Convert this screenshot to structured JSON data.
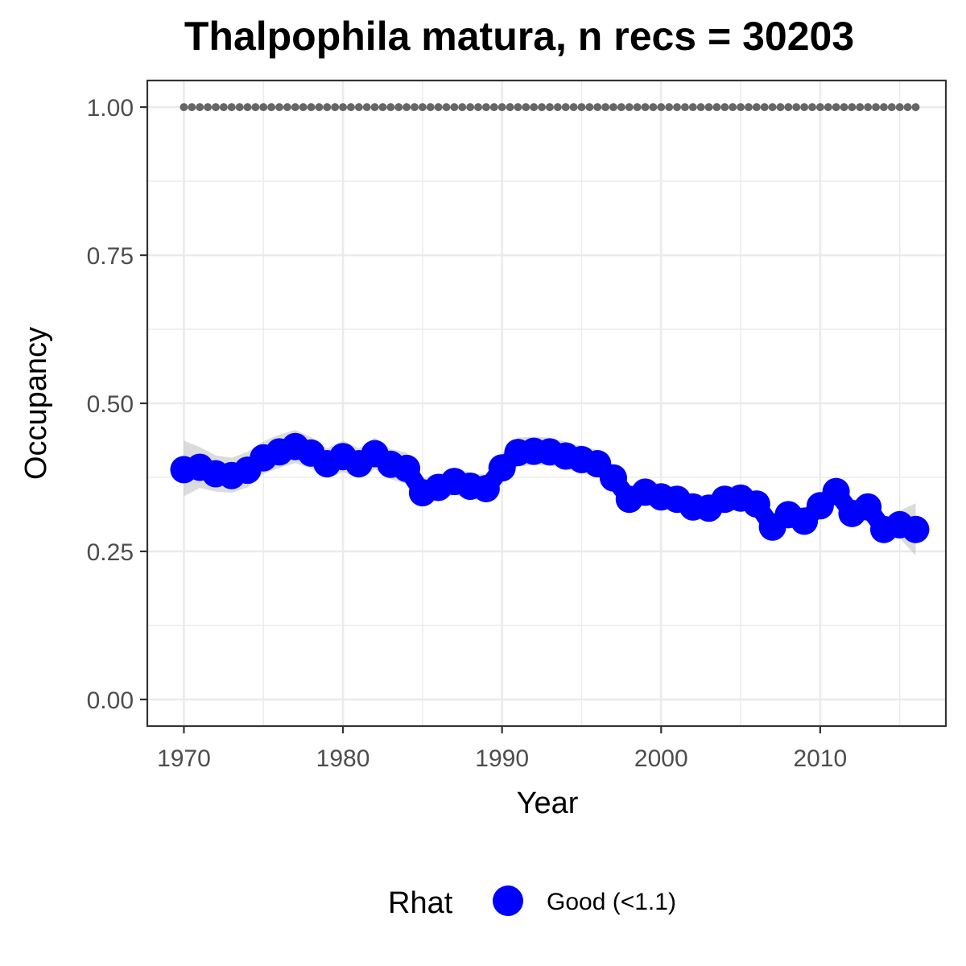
{
  "chart_data": {
    "type": "line",
    "title": "Thalpophila matura, n recs = 30203",
    "xlabel": "Year",
    "ylabel": "Occupancy",
    "xlim": [
      1967.7,
      2017.9
    ],
    "ylim": [
      -0.045,
      1.045
    ],
    "x_ticks": [
      1970,
      1980,
      1990,
      2000,
      2010
    ],
    "x_tick_labels": [
      "1970",
      "1980",
      "1990",
      "2000",
      "2010"
    ],
    "y_ticks": [
      0,
      0.25,
      0.5,
      0.75,
      1.0
    ],
    "y_tick_labels": [
      "0.00",
      "0.25",
      "0.50",
      "0.75",
      "1.00"
    ],
    "grid": true,
    "legend": {
      "position": "bottom",
      "title": "Rhat",
      "entries": [
        {
          "label": "Good (<1.1)",
          "color": "#0000ff"
        }
      ]
    },
    "colors": {
      "series": "#0000ff",
      "ribbon": "#bebebe",
      "reference": "#666666",
      "grid": "#ebebeb",
      "panel_border": "#333333"
    },
    "series": [
      {
        "name": "Good (<1.1)",
        "x": [
          1970,
          1971,
          1972,
          1973,
          1974,
          1975,
          1976,
          1977,
          1978,
          1979,
          1980,
          1981,
          1982,
          1983,
          1984,
          1985,
          1986,
          1987,
          1988,
          1989,
          1990,
          1991,
          1992,
          1993,
          1994,
          1995,
          1996,
          1997,
          1998,
          1999,
          2000,
          2001,
          2002,
          2003,
          2004,
          2005,
          2006,
          2007,
          2008,
          2009,
          2010,
          2011,
          2012,
          2013,
          2014,
          2015,
          2016
        ],
        "values": [
          0.388,
          0.392,
          0.381,
          0.378,
          0.387,
          0.408,
          0.418,
          0.427,
          0.416,
          0.398,
          0.41,
          0.398,
          0.415,
          0.397,
          0.39,
          0.349,
          0.358,
          0.368,
          0.36,
          0.356,
          0.391,
          0.417,
          0.419,
          0.418,
          0.411,
          0.405,
          0.398,
          0.374,
          0.338,
          0.35,
          0.342,
          0.338,
          0.325,
          0.323,
          0.338,
          0.34,
          0.33,
          0.291,
          0.312,
          0.301,
          0.327,
          0.351,
          0.314,
          0.325,
          0.287,
          0.295,
          0.287
        ],
        "lower": [
          0.343,
          0.357,
          0.351,
          0.349,
          0.358,
          0.381,
          0.391,
          0.399,
          0.39,
          0.373,
          0.384,
          0.373,
          0.389,
          0.372,
          0.364,
          0.327,
          0.337,
          0.346,
          0.339,
          0.334,
          0.367,
          0.393,
          0.396,
          0.395,
          0.389,
          0.383,
          0.376,
          0.353,
          0.318,
          0.329,
          0.322,
          0.318,
          0.305,
          0.303,
          0.318,
          0.32,
          0.31,
          0.272,
          0.292,
          0.281,
          0.306,
          0.33,
          0.294,
          0.304,
          0.266,
          0.272,
          0.243
        ],
        "upper": [
          0.437,
          0.426,
          0.412,
          0.408,
          0.418,
          0.436,
          0.447,
          0.455,
          0.443,
          0.424,
          0.437,
          0.424,
          0.442,
          0.423,
          0.417,
          0.372,
          0.38,
          0.391,
          0.383,
          0.379,
          0.416,
          0.442,
          0.444,
          0.442,
          0.435,
          0.428,
          0.421,
          0.396,
          0.359,
          0.372,
          0.363,
          0.359,
          0.346,
          0.344,
          0.359,
          0.361,
          0.351,
          0.311,
          0.332,
          0.322,
          0.348,
          0.373,
          0.335,
          0.347,
          0.308,
          0.319,
          0.331
        ]
      },
      {
        "name": "",
        "x": [
          1970,
          1971,
          1972,
          1973,
          1974,
          1975,
          1976,
          1977,
          1978,
          1979,
          1980,
          1981,
          1982,
          1983,
          1984,
          1985,
          1986,
          1987,
          1988,
          1989,
          1990,
          1991,
          1992,
          1993,
          1994,
          1995,
          1996,
          1997,
          1998,
          1999,
          2000,
          2001,
          2002,
          2003,
          2004,
          2005,
          2006,
          2007,
          2008,
          2009,
          2010,
          2011,
          2012,
          2013,
          2014,
          2015,
          2016
        ],
        "values": [
          1,
          1,
          1,
          1,
          1,
          1,
          1,
          1,
          1,
          1,
          1,
          1,
          1,
          1,
          1,
          1,
          1,
          1,
          1,
          1,
          1,
          1,
          1,
          1,
          1,
          1,
          1,
          1,
          1,
          1,
          1,
          1,
          1,
          1,
          1,
          1,
          1,
          1,
          1,
          1,
          1,
          1,
          1,
          1,
          1,
          1,
          1
        ]
      }
    ]
  }
}
